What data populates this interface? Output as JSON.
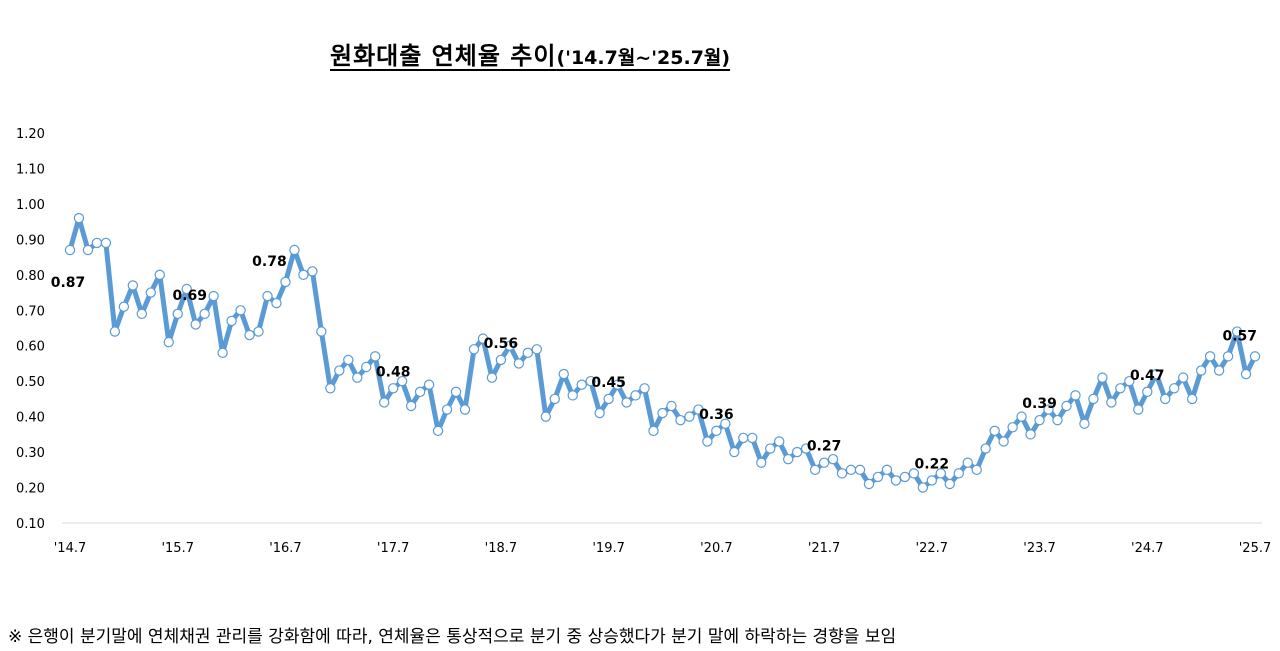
{
  "title": {
    "main": "원화대출 연체율 추이",
    "range": "('14.7월~'25.7월)"
  },
  "note": "※ 은행이 분기말에 연체채권 관리를 강화함에 따라, 연체율은 통상적으로 분기 중 상승했다가 분기 말에 하락하는 경향을 보임",
  "chart_data": {
    "type": "line",
    "title": "원화대출 연체율 추이('14.7월~'25.7월)",
    "xlabel": "",
    "ylabel": "",
    "ylim": [
      0.1,
      1.2
    ],
    "yticks": [
      "1.20",
      "1.10",
      "1.00",
      "0.90",
      "0.80",
      "0.70",
      "0.60",
      "0.50",
      "0.40",
      "0.30",
      "0.20",
      "0.10"
    ],
    "xticks": [
      "'14.7",
      "'15.7",
      "'16.7",
      "'17.7",
      "'18.7",
      "'19.7",
      "'20.7",
      "'21.7",
      "'22.7",
      "'23.7",
      "'24.7",
      "'25.7"
    ],
    "grid": false,
    "legend": "none",
    "colors": {
      "line": "#5B9BD5",
      "marker_fill": "#ffffff",
      "marker_stroke": "#5B9BD5"
    },
    "series": [
      {
        "values": [
          0.87,
          0.96,
          0.87,
          0.89,
          0.89,
          0.64,
          0.71,
          0.77,
          0.69,
          0.75,
          0.8,
          0.61,
          0.69,
          0.76,
          0.66,
          0.69,
          0.74,
          0.58,
          0.67,
          0.7,
          0.63,
          0.64,
          0.74,
          0.72,
          0.78,
          0.87,
          0.8,
          0.81,
          0.64,
          0.48,
          0.53,
          0.56,
          0.51,
          0.54,
          0.57,
          0.44,
          0.48,
          0.5,
          0.43,
          0.47,
          0.49,
          0.36,
          0.42,
          0.47,
          0.42,
          0.59,
          0.62,
          0.51,
          0.56,
          0.6,
          0.55,
          0.58,
          0.59,
          0.4,
          0.45,
          0.52,
          0.46,
          0.49,
          0.5,
          0.41,
          0.45,
          0.49,
          0.44,
          0.46,
          0.48,
          0.36,
          0.41,
          0.43,
          0.39,
          0.4,
          0.42,
          0.33,
          0.36,
          0.38,
          0.3,
          0.34,
          0.34,
          0.27,
          0.31,
          0.33,
          0.28,
          0.3,
          0.31,
          0.25,
          0.27,
          0.28,
          0.24,
          0.25,
          0.25,
          0.21,
          0.23,
          0.25,
          0.22,
          0.23,
          0.24,
          0.2,
          0.22,
          0.24,
          0.21,
          0.24,
          0.27,
          0.25,
          0.31,
          0.36,
          0.33,
          0.37,
          0.4,
          0.35,
          0.39,
          0.42,
          0.39,
          0.43,
          0.46,
          0.38,
          0.45,
          0.51,
          0.44,
          0.48,
          0.5,
          0.42,
          0.47,
          0.52,
          0.45,
          0.48,
          0.51,
          0.45,
          0.53,
          0.57,
          0.53,
          0.57,
          0.64,
          0.52,
          0.57
        ]
      }
    ],
    "annotations": [
      {
        "label": "0.87",
        "index": 0
      },
      {
        "label": "0.69",
        "index": 12
      },
      {
        "label": "0.78",
        "index": 24
      },
      {
        "label": "0.48",
        "index": 36
      },
      {
        "label": "0.56",
        "index": 48
      },
      {
        "label": "0.45",
        "index": 60
      },
      {
        "label": "0.36",
        "index": 72
      },
      {
        "label": "0.27",
        "index": 84
      },
      {
        "label": "0.22",
        "index": 96
      },
      {
        "label": "0.39",
        "index": 108
      },
      {
        "label": "0.47",
        "index": 120
      },
      {
        "label": "0.57",
        "index": 132
      }
    ]
  }
}
